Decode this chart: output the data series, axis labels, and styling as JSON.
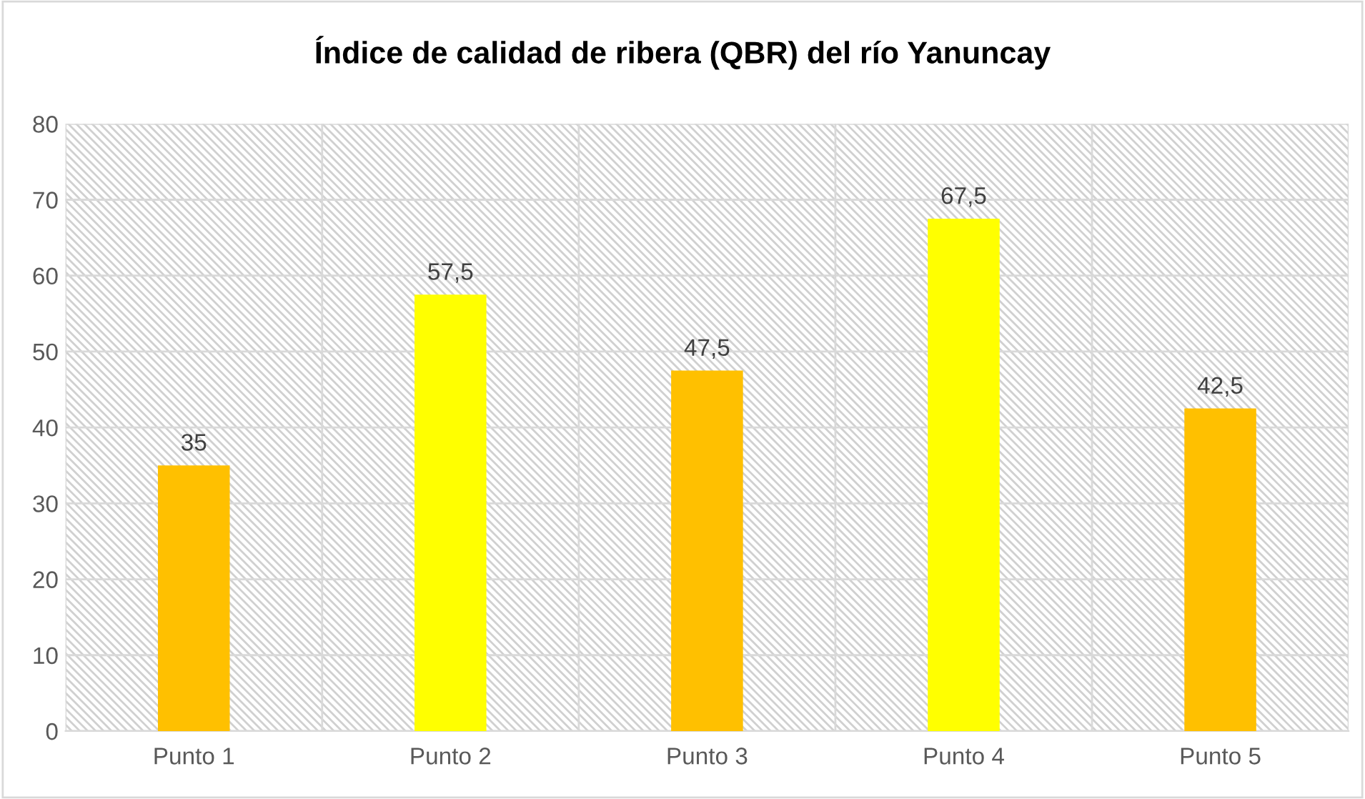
{
  "chart_data": {
    "type": "bar",
    "title": "Índice de calidad de ribera (QBR) del río Yanuncay",
    "categories": [
      "Punto 1",
      "Punto 2",
      "Punto 3",
      "Punto 4",
      "Punto 5"
    ],
    "values": [
      35,
      57.5,
      47.5,
      67.5,
      42.5
    ],
    "colors": [
      "#ffc000",
      "#ffff00",
      "#ffc000",
      "#ffff00",
      "#ffc000"
    ],
    "value_labels": [
      "35",
      "57,5",
      "47,5",
      "67,5",
      "42,5"
    ],
    "ylim": [
      0,
      80
    ],
    "yticks": [
      0,
      10,
      20,
      30,
      40,
      50,
      60,
      70,
      80
    ],
    "grid": true
  }
}
